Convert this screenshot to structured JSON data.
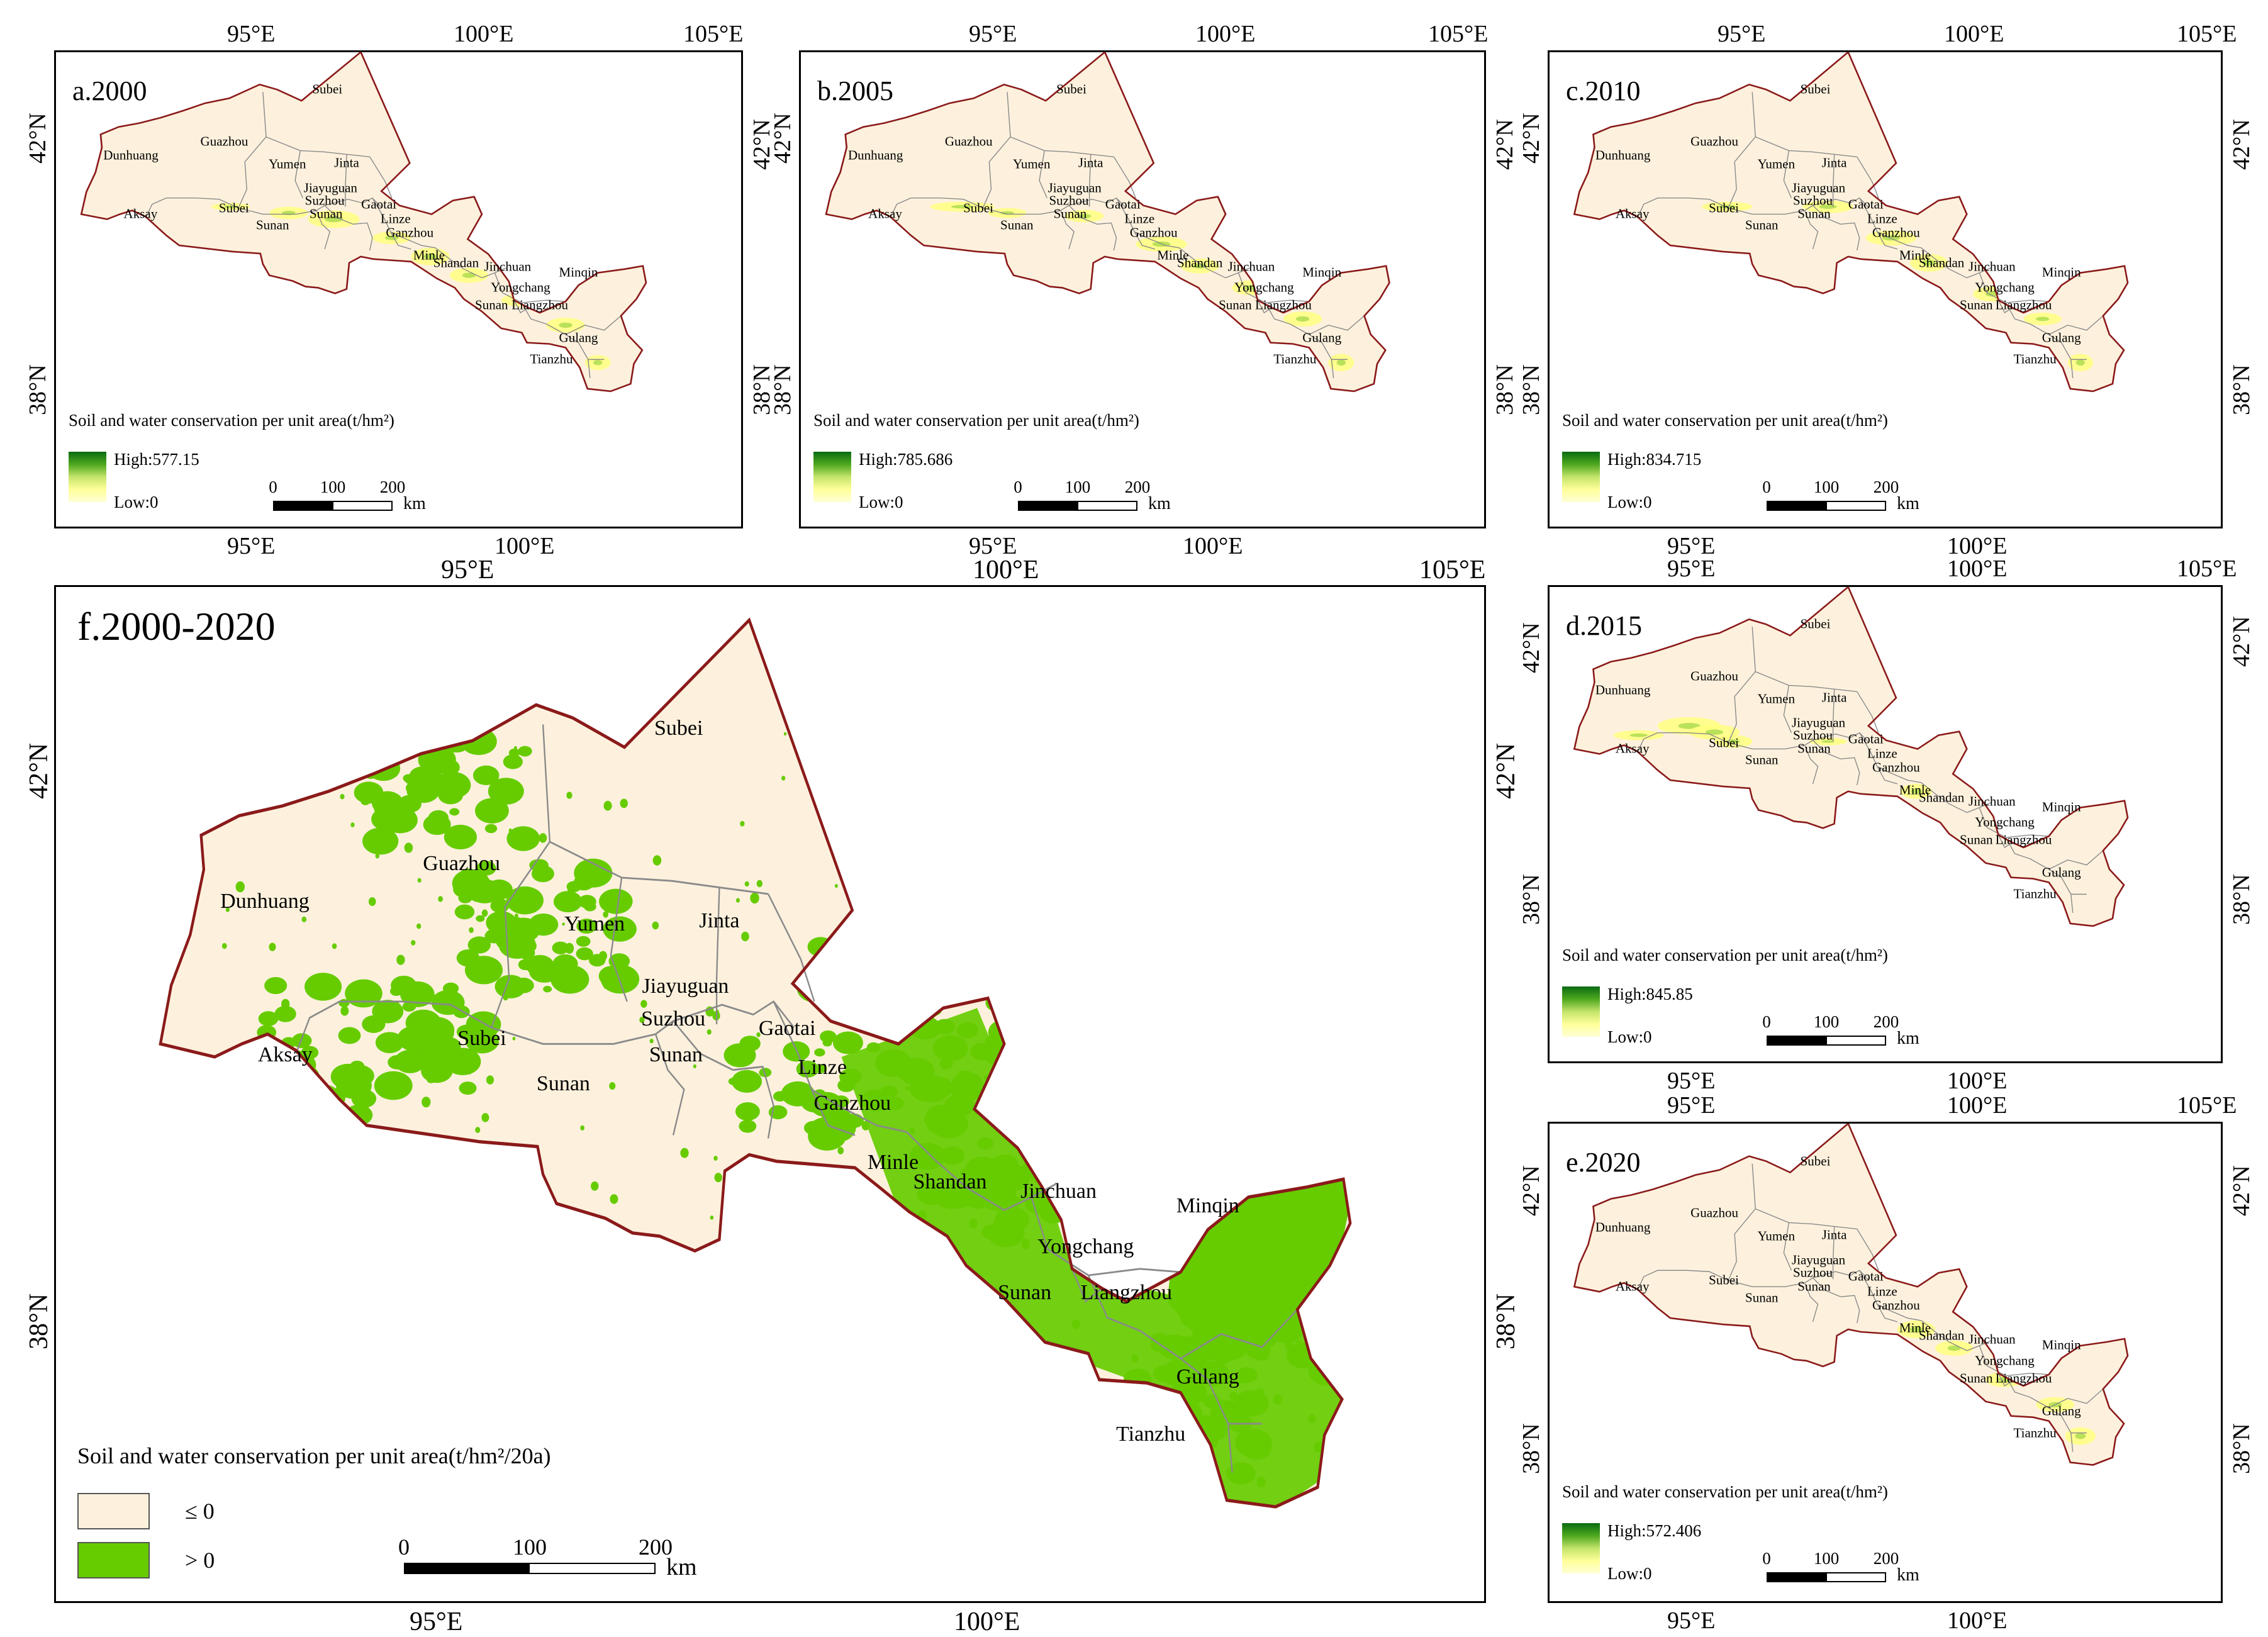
{
  "colors": {
    "land": "#fdf1dd",
    "border": "#8b1a1a",
    "county_line": "#8a8a8a",
    "green": "#66cc00",
    "ramp_high": "#0a6b12",
    "ramp_low": "#ffffd6"
  },
  "ticks": {
    "lon95": "95°E",
    "lon100": "100°E",
    "lon105": "105°E",
    "lat42": "42°N",
    "lat38": "38°N"
  },
  "places": {
    "subei": "Subei",
    "dunhuang": "Dunhuang",
    "guazhou": "Guazhou",
    "yumen": "Yumen",
    "jinta": "Jinta",
    "jiayuguan": "Jiayuguan",
    "suzhou": "Suzhou",
    "aksay": "Aksay",
    "sunan": "Sunan",
    "gaotai": "Gaotai",
    "linze": "Linze",
    "ganzhou": "Ganzhou",
    "minle": "Minle",
    "shandan": "Shandan",
    "jinchuan": "Jinchuan",
    "minqin": "Minqin",
    "yongchang": "Yongchang",
    "liangzhou": "Liangzhou",
    "gulang": "Gulang",
    "tianzhu": "Tianzhu"
  },
  "legend_title": "Soil and water conservation per unit area(t/hm²)",
  "legend_title_f": "Soil and water conservation per unit area(t/hm²/20a)",
  "scale": {
    "s0": "0",
    "s100": "100",
    "s200": "200",
    "unit": "km"
  },
  "panels": {
    "a": {
      "title": "a.2000",
      "high": "High:577.15",
      "low": "Low:0"
    },
    "b": {
      "title": "b.2005",
      "high": "High:785.686",
      "low": "Low:0"
    },
    "c": {
      "title": "c.2010",
      "high": "High:834.715",
      "low": "Low:0"
    },
    "d": {
      "title": "d.2015",
      "high": "High:845.85",
      "low": "Low:0"
    },
    "e": {
      "title": "e.2020",
      "high": "High:572.406",
      "low": "Low:0"
    },
    "f": {
      "title": "f.2000-2020",
      "cls_le": "≤ 0",
      "cls_gt": "> 0"
    }
  }
}
